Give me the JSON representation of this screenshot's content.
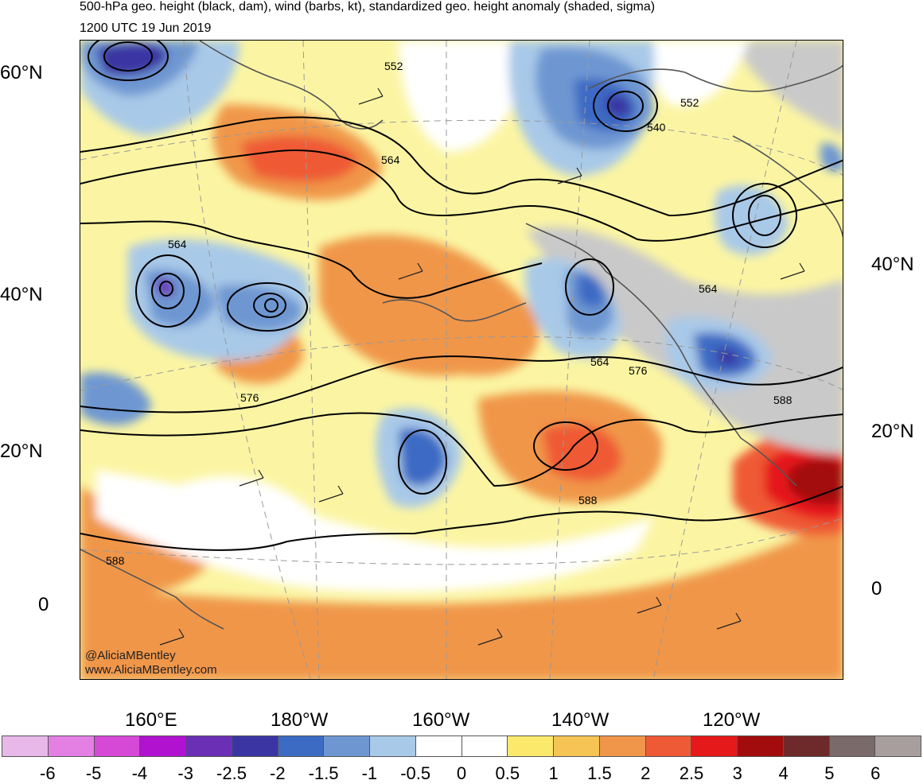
{
  "header": {
    "title": "500-hPa geo. height (black, dam), wind (barbs, kt), standardized geo. height anomaly (shaded, sigma)",
    "valid_time": "1200 UTC 19 Jun 2019"
  },
  "axes": {
    "left_lat_labels": [
      "60°N",
      "40°N",
      "20°N",
      "0"
    ],
    "right_lat_labels": [
      "40°N",
      "20°N",
      "0"
    ],
    "bottom_lon_labels": [
      "160°E",
      "180°W",
      "160°W",
      "140°W",
      "120°W"
    ]
  },
  "contour_labels": [
    "552",
    "552",
    "540",
    "564",
    "564",
    "564",
    "564",
    "576",
    "576",
    "588",
    "588",
    "588"
  ],
  "watermark": {
    "handle": "@AliciaMBentley",
    "website": "www.AliciaMBentley.com"
  },
  "colorbar": {
    "tick_labels": [
      "-6",
      "-5",
      "-4",
      "-3",
      "-2.5",
      "-2",
      "-1.5",
      "-1",
      "-0.5",
      "0",
      "0.5",
      "1",
      "1.5",
      "2",
      "2.5",
      "3",
      "4",
      "5",
      "6"
    ],
    "colors": [
      "#e8b8e8",
      "#e47fe4",
      "#d648d6",
      "#b012cf",
      "#6a2fb5",
      "#3b35a3",
      "#3c6bc4",
      "#6e97d2",
      "#a9c9e8",
      "#ffffff",
      "#ffffff",
      "#fbe96c",
      "#f5c455",
      "#f0964a",
      "#ef5a36",
      "#e5181a",
      "#a30c0c",
      "#6e2a2a",
      "#7a6a6a",
      "#a89e9e"
    ]
  },
  "map_colors": {
    "land_outline": "#555555",
    "contour": "#000000",
    "grid": "#999999"
  }
}
